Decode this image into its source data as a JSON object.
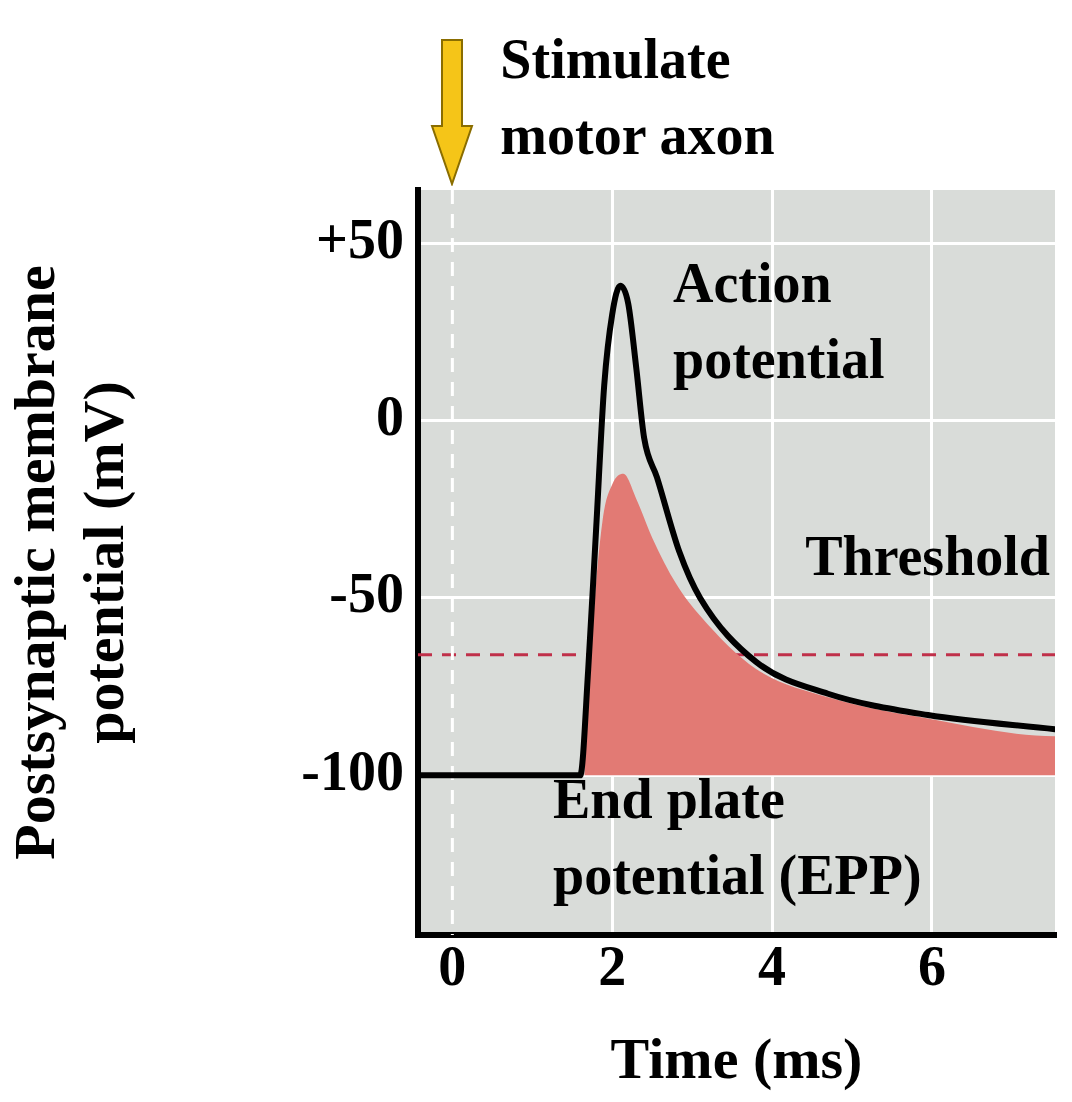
{
  "chart_data": {
    "type": "line",
    "xlabel": "Time (ms)",
    "ylabel": "Postsynaptic membrane potential (mV)",
    "xlim": [
      -0.43,
      7.54
    ],
    "ylim": [
      -145,
      65
    ],
    "xticks": [
      0,
      2,
      4,
      6
    ],
    "yticks": [
      {
        "value": 50,
        "label": "+50"
      },
      0,
      -50,
      -100
    ],
    "grid": true,
    "legend": false,
    "marker": "none",
    "series": [
      {
        "name": "End plate potential (EPP)",
        "type": "area",
        "color": "#e27a74",
        "x": [
          1.65,
          1.75,
          1.88,
          2.0,
          2.14,
          2.3,
          2.5,
          2.8,
          3.1,
          3.8,
          4.7,
          5.95,
          7.54,
          7.54
        ],
        "values": [
          -100,
          -60,
          -28,
          -18,
          -15,
          -22,
          -33,
          -46,
          -55,
          -70,
          -78,
          -84,
          -89,
          -100
        ]
      },
      {
        "name": "Action potential",
        "color": "#000000",
        "x": [
          -0.43,
          1.6,
          1.7,
          1.8,
          1.9,
          2.0,
          2.1,
          2.2,
          2.3,
          2.4,
          2.56,
          2.84,
          3.1,
          3.8,
          4.7,
          5.95,
          7.54
        ],
        "values": [
          -100,
          -100,
          -70,
          -30,
          10,
          30,
          38,
          33,
          15,
          -5,
          -16,
          -37,
          -50,
          -68,
          -77,
          -83,
          -87
        ]
      }
    ],
    "ref_lines": [
      {
        "axis": "y",
        "value": -66,
        "label": "Threshold",
        "color": "#c0304a",
        "line_style": "dashed"
      },
      {
        "axis": "x",
        "value": 0,
        "color": "#ffffff",
        "line_style": "dashed"
      }
    ],
    "annotations": [
      "Stimulate motor axon"
    ]
  }
}
